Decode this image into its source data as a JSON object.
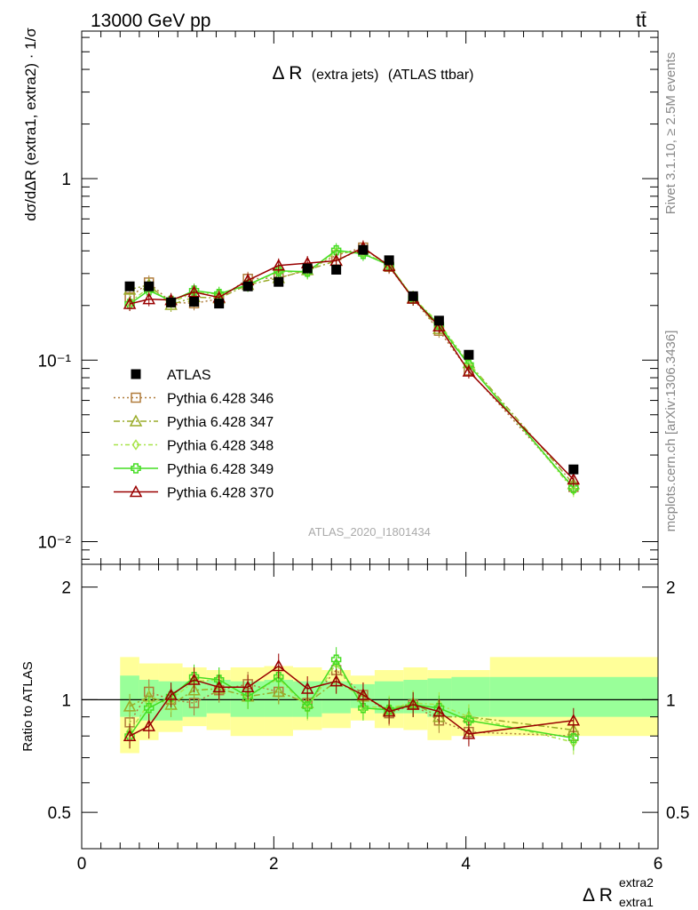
{
  "header": {
    "energy_label": "13000 GeV pp",
    "process_label": "tt̄"
  },
  "upper": {
    "title_main": "Δ R",
    "title_paren1": "(extra jets)",
    "title_paren2": "(ATLAS ttbar)",
    "ylabel": "dσ/dΔR (extra1, extra2) · 1/σ",
    "ytick_labels": {
      "1": "1",
      "0.1": "10⁻¹",
      "0.01": "10⁻²"
    },
    "analysis_id": "ATLAS_2020_I1801434",
    "side_label_top": "Rivet 3.1.10, ≥ 2.5M events",
    "side_label_bottom": "mcplots.cern.ch [arXiv:1306.3436]"
  },
  "lower": {
    "ylabel": "Ratio to ATLAS",
    "ytick_labels": [
      "0.5",
      "1",
      "2"
    ],
    "xtick_labels": [
      "0",
      "2",
      "4",
      "6"
    ],
    "xlabel_base": "Δ R",
    "xlabel_sup": "extra2",
    "xlabel_sub": "extra1"
  },
  "legend": {
    "entries": [
      "ATLAS",
      "Pythia 6.428 346",
      "Pythia 6.428 347",
      "Pythia 6.428 348",
      "Pythia 6.428 349",
      "Pythia 6.428 370"
    ]
  },
  "colors": {
    "data": "#000000",
    "s346": "#b07c3c",
    "s347": "#9aac2a",
    "s348": "#a8e44a",
    "s349": "#44dd22",
    "s370": "#990000",
    "band_outer": "#ffff99",
    "band_inner": "#99ff99"
  },
  "chart_data": {
    "type": "scatter",
    "x_range": [
      0,
      6
    ],
    "upper_y_range": [
      0.0075,
      6.5
    ],
    "upper_y_scale": "log",
    "lower_y_range": [
      0.4,
      2.3
    ],
    "lower_y_scale": "log",
    "legend_position": "left",
    "x": [
      0.5,
      0.7,
      0.93,
      1.17,
      1.43,
      1.73,
      2.05,
      2.35,
      2.65,
      2.93,
      3.2,
      3.45,
      3.72,
      4.03,
      5.12
    ],
    "data": [
      0.255,
      0.255,
      0.208,
      0.21,
      0.205,
      0.255,
      0.27,
      0.32,
      0.315,
      0.405,
      0.355,
      0.225,
      0.165,
      0.107,
      0.025
    ],
    "bands": {
      "x_edges": [
        0.4,
        0.6,
        0.8,
        1.05,
        1.3,
        1.55,
        1.9,
        2.2,
        2.5,
        2.8,
        3.05,
        3.35,
        3.6,
        3.85,
        4.25,
        6.0
      ],
      "inner_lo": [
        0.9,
        0.88,
        0.88,
        0.9,
        0.92,
        0.9,
        0.9,
        0.9,
        0.92,
        0.95,
        0.92,
        0.92,
        0.9,
        0.9,
        0.9
      ],
      "inner_hi": [
        1.16,
        1.13,
        1.12,
        1.12,
        1.13,
        1.12,
        1.13,
        1.12,
        1.12,
        1.1,
        1.12,
        1.13,
        1.14,
        1.15,
        1.15
      ],
      "outer_lo": [
        0.72,
        0.78,
        0.82,
        0.85,
        0.83,
        0.8,
        0.8,
        0.83,
        0.84,
        0.88,
        0.84,
        0.83,
        0.78,
        0.8,
        0.8
      ],
      "outer_hi": [
        1.3,
        1.25,
        1.25,
        1.22,
        1.2,
        1.22,
        1.23,
        1.22,
        1.2,
        1.16,
        1.2,
        1.22,
        1.2,
        1.2,
        1.3
      ]
    },
    "series": [
      {
        "name": "Pythia 6.428 346",
        "key": "s346",
        "marker": "square",
        "dash": "2,3",
        "ratio": [
          0.87,
          1.05,
          1.0,
          0.98,
          1.06,
          1.1,
          1.05,
          0.98,
          1.2,
          1.03,
          0.92,
          0.97,
          0.88,
          0.82,
          0.8
        ]
      },
      {
        "name": "Pythia 6.428 347",
        "key": "s347",
        "marker": "triangle",
        "dash": "7,3,2,3",
        "ratio": [
          0.96,
          1.02,
          0.97,
          1.06,
          1.07,
          1.02,
          1.05,
          0.98,
          1.12,
          1.02,
          0.94,
          0.98,
          0.9,
          0.9,
          0.83
        ]
      },
      {
        "name": "Pythia 6.428 348",
        "key": "s348",
        "marker": "diamond",
        "dash": "5,3,2,3",
        "ratio": [
          0.82,
          0.98,
          1.0,
          1.12,
          1.13,
          1.02,
          1.14,
          0.95,
          1.25,
          0.96,
          0.95,
          0.98,
          0.97,
          0.9,
          0.77
        ]
      },
      {
        "name": "Pythia 6.428 349",
        "key": "s349",
        "marker": "cross",
        "dash": "",
        "ratio": [
          0.8,
          0.95,
          1.02,
          1.15,
          1.13,
          1.02,
          1.15,
          0.96,
          1.28,
          0.95,
          0.94,
          0.97,
          0.95,
          0.88,
          0.79
        ]
      },
      {
        "name": "Pythia 6.428 370",
        "key": "s370",
        "marker": "triangle",
        "dash": "",
        "ratio": [
          0.8,
          0.85,
          1.03,
          1.13,
          1.08,
          1.08,
          1.23,
          1.07,
          1.12,
          1.03,
          0.93,
          0.97,
          0.93,
          0.81,
          0.88
        ]
      }
    ]
  }
}
